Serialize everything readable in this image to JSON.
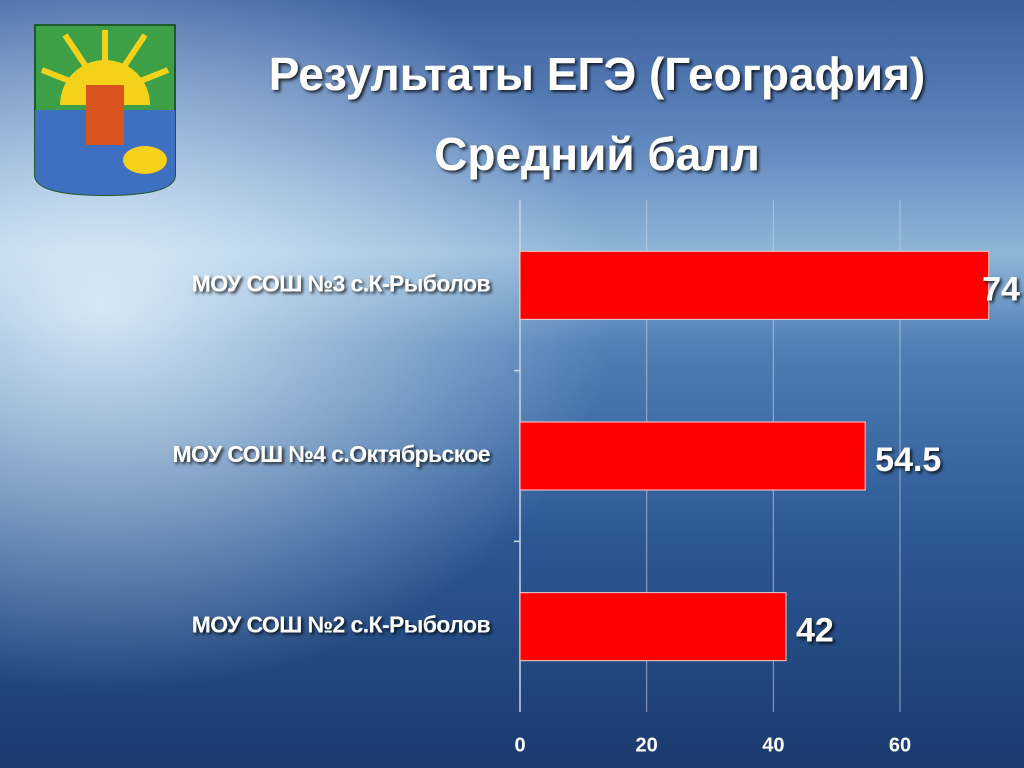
{
  "chart_data": {
    "type": "bar",
    "orientation": "horizontal",
    "title": "Результаты ЕГЭ (География)",
    "subtitle": "Средний балл",
    "categories": [
      "МОУ СОШ №3 с.К-Рыболов",
      "МОУ СОШ №4 с.Октябрьское",
      "МОУ СОШ №2 с.К-Рыболов"
    ],
    "values": [
      74,
      54.5,
      42
    ],
    "color": "#ff0000",
    "xlim": [
      0,
      75
    ],
    "xticks": [
      0,
      20,
      40,
      60
    ],
    "grid": true
  }
}
